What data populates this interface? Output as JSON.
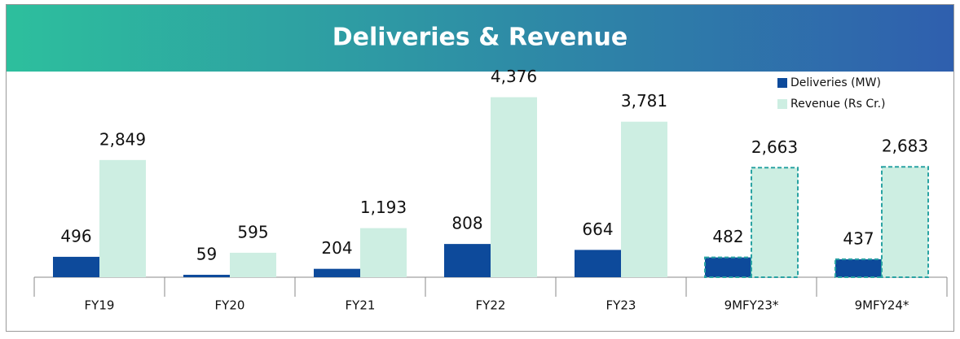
{
  "chart_data": {
    "type": "bar",
    "title": "Deliveries & Revenue",
    "categories": [
      "FY19",
      "FY20",
      "FY21",
      "FY22",
      "FY23",
      "9MFY23*",
      "9MFY24*"
    ],
    "series": [
      {
        "name": "Deliveries (MW)",
        "color": "#0d4a9b",
        "values": [
          496,
          59,
          204,
          808,
          664,
          482,
          437
        ]
      },
      {
        "name": "Revenue (Rs Cr.)",
        "color": "#cdeee2",
        "values": [
          2849,
          595,
          1193,
          4376,
          3781,
          2663,
          2683
        ],
        "value_labels": [
          "2,849",
          "595",
          "1,193",
          "4,376",
          "3,781",
          "2,663",
          "2,683"
        ]
      }
    ],
    "dashed": [
      false,
      false,
      false,
      false,
      false,
      true,
      true
    ],
    "dash_color": "#2aa3a3",
    "ylim": [
      0,
      5000
    ],
    "grid": false,
    "legend": "top-right"
  }
}
